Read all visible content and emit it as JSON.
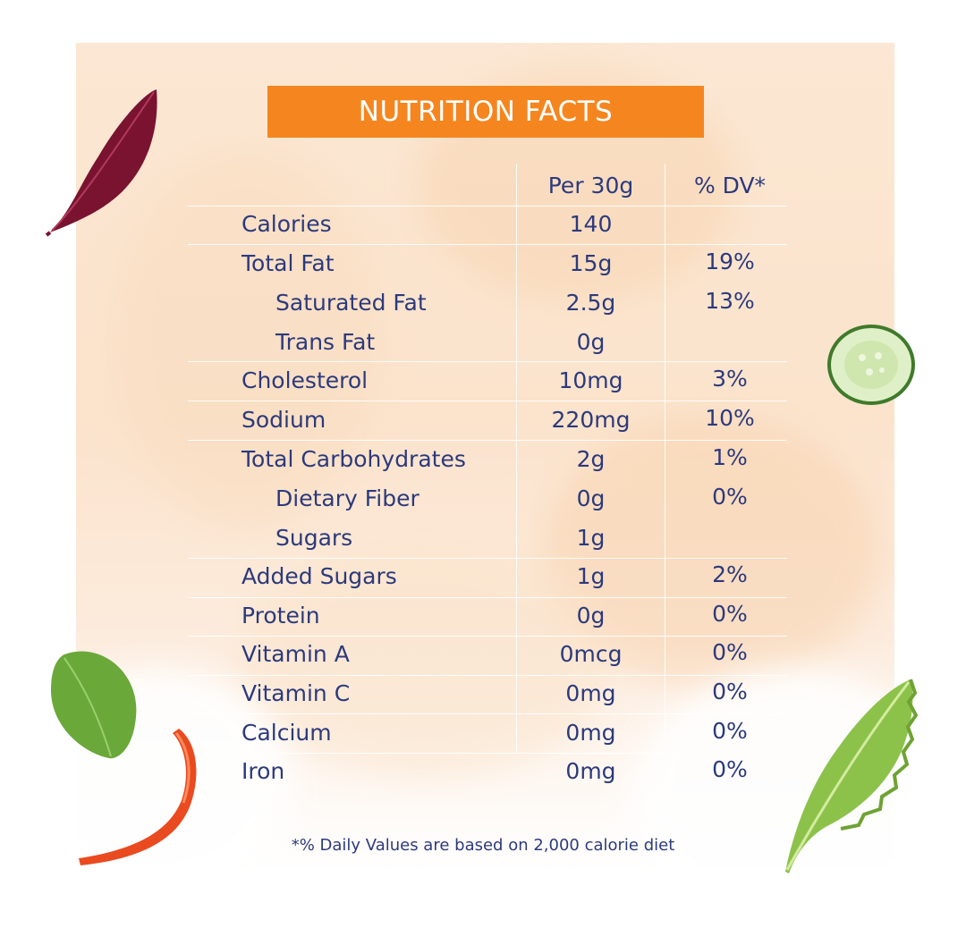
{
  "title": "NUTRITION FACTS",
  "columns": {
    "per": "Per 30g",
    "dv": "% DV*"
  },
  "rows": [
    {
      "name": "Calories",
      "per": "140",
      "dv": ""
    },
    {
      "name": "Total Fat",
      "per": "15g",
      "dv": "19%"
    },
    {
      "name": "Saturated Fat",
      "per": "2.5g",
      "dv": "13%"
    },
    {
      "name": "Trans Fat",
      "per": "0g",
      "dv": ""
    },
    {
      "name": "Cholesterol",
      "per": "10mg",
      "dv": "3%"
    },
    {
      "name": "Sodium",
      "per": "220mg",
      "dv": "10%"
    },
    {
      "name": "Total Carbohydrates",
      "per": "2g",
      "dv": "1%"
    },
    {
      "name": "Dietary Fiber",
      "per": "0g",
      "dv": "0%"
    },
    {
      "name": "Sugars",
      "per": "1g",
      "dv": ""
    },
    {
      "name": "Added Sugars",
      "per": "1g",
      "dv": "2%"
    },
    {
      "name": "Protein",
      "per": "0g",
      "dv": "0%"
    },
    {
      "name": "Vitamin A",
      "per": "0mcg",
      "dv": "0%"
    },
    {
      "name": "Vitamin C",
      "per": "0mg",
      "dv": "0%"
    },
    {
      "name": "Calcium",
      "per": "0mg",
      "dv": "0%"
    },
    {
      "name": "Iron",
      "per": "0mg",
      "dv": "0%"
    }
  ],
  "footnote": "*% Daily Values are based on 2,000 calorie diet",
  "colors": {
    "title_bar": "#f5861f",
    "text": "#2c3a7c",
    "background": "#fbe5cf"
  },
  "decorations": [
    "beet-leaf-icon",
    "cucumber-slice-icon",
    "basil-leaf-icon",
    "red-pepper-strip-icon",
    "lettuce-leaf-icon"
  ]
}
